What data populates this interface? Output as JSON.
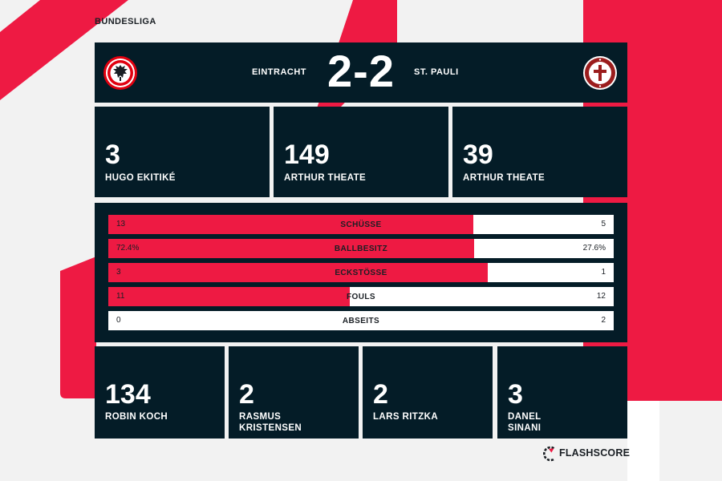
{
  "league": "BUNDESLIGA",
  "match": {
    "home_team": "EINTRACHT",
    "away_team": "ST. PAULI",
    "score": "2-2"
  },
  "top_stats": [
    {
      "value": "3",
      "player": "HUGO EKITIKÉ"
    },
    {
      "value": "149",
      "player": "ARTHUR THEATE"
    },
    {
      "value": "39",
      "player": "ARTHUR THEATE"
    }
  ],
  "comparison": [
    {
      "label": "SCHÜSSE",
      "home": "13",
      "away": "5",
      "home_share": 0.722
    },
    {
      "label": "BALLBESITZ",
      "home": "72.4%",
      "away": "27.6%",
      "home_share": 0.724
    },
    {
      "label": "ECKSTÖSSE",
      "home": "3",
      "away": "1",
      "home_share": 0.75
    },
    {
      "label": "FOULS",
      "home": "11",
      "away": "12",
      "home_share": 0.478
    },
    {
      "label": "ABSEITS",
      "home": "0",
      "away": "2",
      "home_share": 0.0
    }
  ],
  "bottom_stats": [
    {
      "value": "134",
      "player": "ROBIN KOCH"
    },
    {
      "value": "2",
      "player": "RASMUS KRISTENSEN"
    },
    {
      "value": "2",
      "player": "LARS RITZKA"
    },
    {
      "value": "3",
      "player": "DANEL SINANI"
    }
  ],
  "brand": {
    "name": "FLASHSCORE",
    "icon": "flashscore-logo-icon"
  },
  "colors": {
    "panel": "#041c27",
    "accent": "#ee1a43",
    "background": "#f2f2f2"
  }
}
